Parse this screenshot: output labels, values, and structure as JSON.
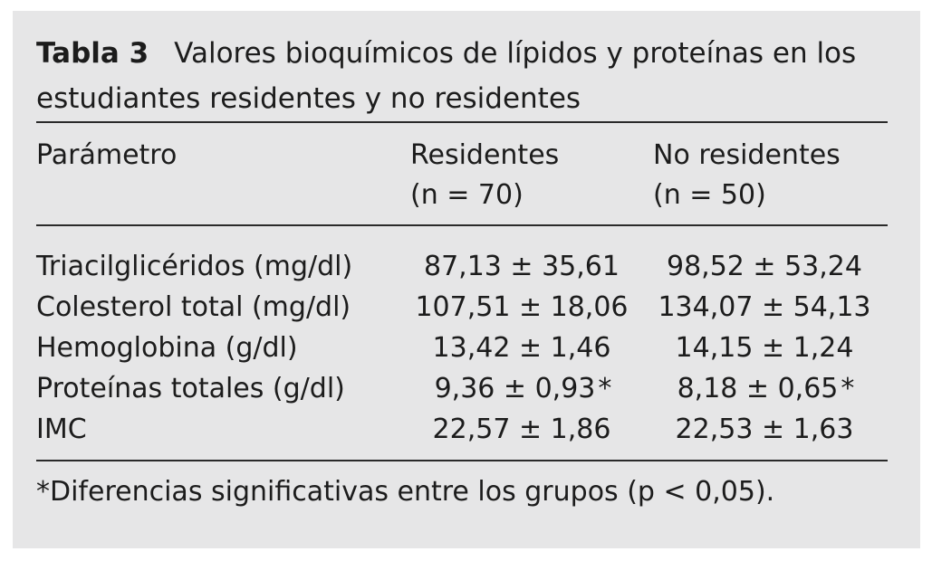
{
  "table": {
    "label": "Tabla 3",
    "title_line1": "Valores bioquímicos de lípidos y proteínas en los",
    "title_line2": "estudiantes residentes y no residentes",
    "headers": {
      "param": "Parámetro",
      "res_line1": "Residentes",
      "res_line2": "(n = 70)",
      "nores_line1": "No residentes",
      "nores_line2": "(n = 50)"
    },
    "rows": [
      {
        "param": "Triacilglicéridos (mg/dl)",
        "res": "87,13 ± 35,61",
        "res_mark": "",
        "nores": "98,52 ± 53,24",
        "nores_mark": ""
      },
      {
        "param": "Colesterol total (mg/dl)",
        "res": "107,51 ± 18,06",
        "res_mark": "",
        "nores": "134,07 ± 54,13",
        "nores_mark": ""
      },
      {
        "param": "Hemoglobina (g/dl)",
        "res": "13,42 ± 1,46",
        "res_mark": "",
        "nores": "14,15 ± 1,24",
        "nores_mark": ""
      },
      {
        "param": "Proteínas totales (g/dl)",
        "res": "9,36 ± 0,93",
        "res_mark": "*",
        "nores": "8,18 ± 0,65",
        "nores_mark": "*"
      },
      {
        "param": "IMC",
        "res": "22,57 ± 1,86",
        "res_mark": "",
        "nores": "22,53 ± 1,63",
        "nores_mark": ""
      }
    ],
    "footnote": "*Diferencias significativas entre los grupos (p < 0,05)."
  },
  "colors": {
    "panel_background": "#e6e6e7",
    "text": "#1c1c1c",
    "rule": "#2a2a2a"
  }
}
